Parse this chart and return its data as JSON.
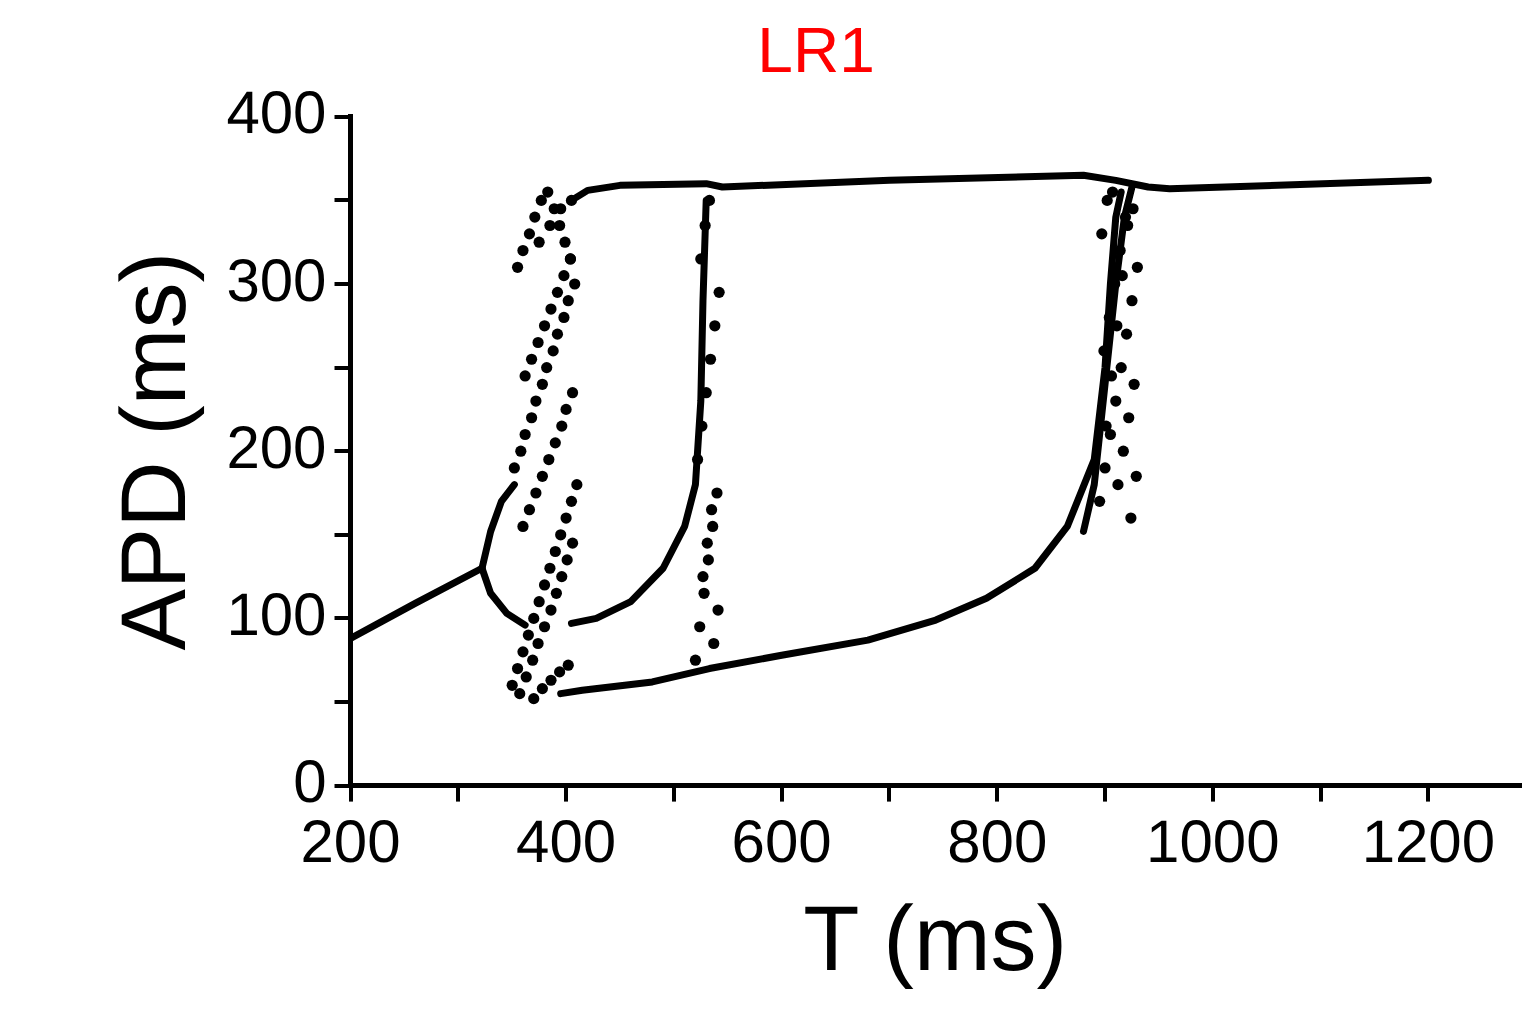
{
  "chart_data": {
    "type": "scatter",
    "title": "LR1",
    "xlabel": "T (ms)",
    "ylabel": "APD (ms)",
    "xlim": [
      200,
      1285
    ],
    "ylim": [
      0,
      400
    ],
    "xticks": [
      200,
      {
        "value": 300,
        "label": null
      },
      400,
      {
        "value": 500,
        "label": null
      },
      600,
      {
        "value": 700,
        "label": null
      },
      800,
      {
        "value": 900,
        "label": null
      },
      1000,
      {
        "value": 1100,
        "label": null
      },
      1200
    ],
    "yticks": [
      0,
      {
        "value": 50,
        "label": null
      },
      100,
      {
        "value": 150,
        "label": null
      },
      200,
      {
        "value": 250,
        "label": null
      },
      300,
      {
        "value": 350,
        "label": null
      },
      400
    ],
    "grid": false,
    "legend": false,
    "series": [
      {
        "type": "line",
        "color": "#000000",
        "x": [
          200,
          260,
          322
        ],
        "values": [
          88,
          109,
          130
        ]
      },
      {
        "type": "line",
        "color": "#000000",
        "x": [
          322,
          330,
          340,
          352
        ],
        "values": [
          130,
          152,
          170,
          180
        ]
      },
      {
        "type": "line",
        "color": "#000000",
        "x": [
          322,
          330,
          345,
          362
        ],
        "values": [
          130,
          115,
          103,
          96
        ]
      },
      {
        "type": "line",
        "color": "#000000",
        "x": [
          405,
          420,
          450,
          530,
          545,
          700,
          880,
          910,
          940,
          960,
          1200
        ],
        "values": [
          350,
          356,
          359,
          360,
          358,
          362,
          365,
          362,
          358,
          357,
          362
        ]
      },
      {
        "type": "line",
        "color": "#000000",
        "x": [
          405,
          428,
          460,
          490,
          510,
          520,
          525,
          527,
          530
        ],
        "values": [
          97,
          100,
          110,
          130,
          155,
          180,
          230,
          290,
          350
        ]
      },
      {
        "type": "line",
        "color": "#000000",
        "x": [
          395,
          415,
          480,
          533,
          600,
          680,
          743,
          790,
          835,
          865,
          890,
          900,
          905,
          910,
          915
        ],
        "values": [
          55,
          57,
          62,
          70,
          78,
          87,
          99,
          112,
          130,
          155,
          195,
          250,
          300,
          340,
          355
        ]
      },
      {
        "type": "line",
        "color": "#000000",
        "x": [
          880,
          890,
          900,
          910,
          918,
          925
        ],
        "values": [
          152,
          180,
          240,
          300,
          340,
          358
        ]
      },
      {
        "type": "scatter",
        "color": "#000000",
        "marker": "circle",
        "x": [
          350,
          355,
          360,
          365,
          370,
          375,
          380,
          385,
          390,
          395,
          400,
          405,
          410,
          352,
          358,
          362,
          368,
          372,
          378,
          382,
          388,
          392,
          398,
          402,
          408,
          355,
          360,
          366,
          371,
          377,
          383,
          389,
          394,
          399,
          404,
          357,
          363,
          369,
          374,
          380,
          386,
          391,
          396,
          401,
          406,
          360,
          366,
          372,
          378,
          384,
          390,
          396,
          400,
          406,
          362,
          368,
          374,
          380,
          386,
          392,
          398,
          404,
          370,
          378,
          386,
          394,
          402,
          375,
          385,
          395,
          405,
          520,
          524,
          528,
          532,
          536,
          540,
          522,
          526,
          530,
          534,
          538,
          542,
          525,
          529,
          533,
          537,
          541,
          527,
          531,
          535,
          895,
          900,
          905,
          910,
          915,
          920,
          925,
          930,
          897,
          902,
          907,
          912,
          917,
          922,
          927,
          899,
          904,
          909,
          914,
          919,
          924,
          929,
          901,
          906,
          911,
          916,
          921,
          926
        ],
        "values": [
          60,
          70,
          80,
          90,
          100,
          110,
          120,
          130,
          140,
          150,
          160,
          170,
          180,
          190,
          200,
          210,
          220,
          230,
          240,
          250,
          260,
          270,
          280,
          290,
          300,
          310,
          320,
          330,
          340,
          350,
          355,
          345,
          335,
          325,
          315,
          55,
          65,
          75,
          85,
          95,
          105,
          115,
          125,
          135,
          145,
          155,
          165,
          175,
          185,
          195,
          205,
          215,
          225,
          235,
          245,
          255,
          265,
          275,
          285,
          295,
          305,
          315,
          52,
          58,
          63,
          68,
          72,
          325,
          335,
          345,
          350,
          75,
          95,
          115,
          135,
          155,
          175,
          195,
          215,
          235,
          255,
          275,
          295,
          315,
          335,
          350,
          85,
          105,
          125,
          145,
          165,
          170,
          190,
          210,
          230,
          250,
          270,
          290,
          310,
          330,
          350,
          355,
          180,
          200,
          220,
          240,
          260,
          280,
          300,
          320,
          340,
          160,
          185,
          215,
          245,
          275,
          305,
          335,
          345
        ]
      }
    ]
  }
}
